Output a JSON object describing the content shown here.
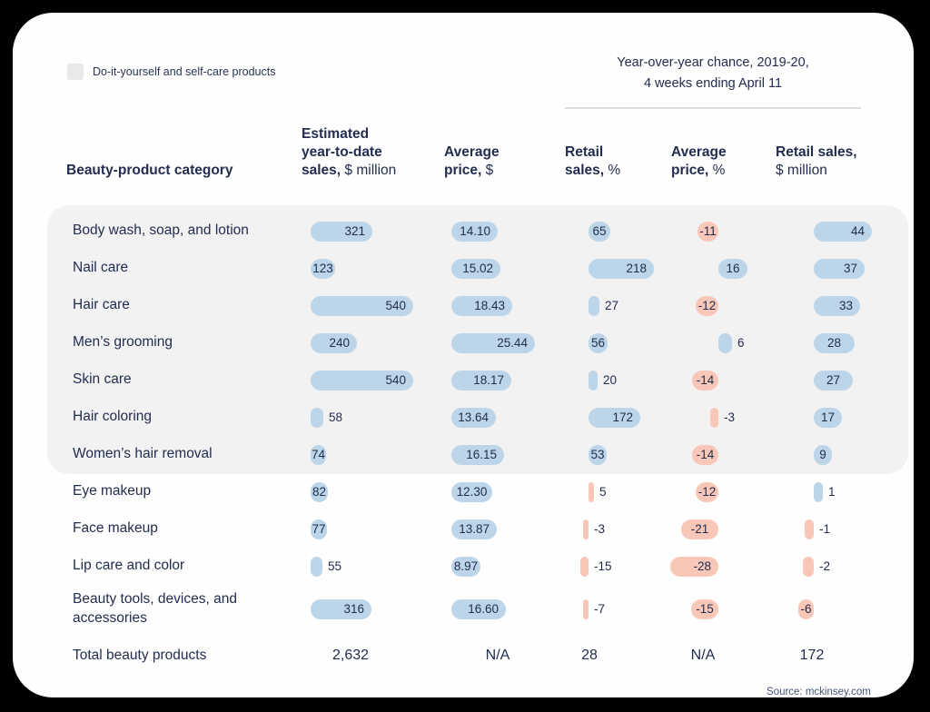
{
  "colors": {
    "background": "#000000",
    "card": "#FEFEFE",
    "highlight_band": "#F2F2F3",
    "text_navy": "#232D4F",
    "bar_positive_blue": "#BDD5E8",
    "bar_negative_pink": "#F8C7B8",
    "legend_square": "#E9E9E9"
  },
  "legend": {
    "label": "Do-it-yourself and self-care products"
  },
  "annotation": {
    "line1": "Year-over-year chance, 2019-20,",
    "line2": "4 weeks ending April 11"
  },
  "headers": {
    "category": "Beauty-product category",
    "col1": {
      "l1": "Estimated",
      "l2": "year-to-date",
      "l3": "sales,",
      "unit": " $ million"
    },
    "col2": {
      "l1": "Average",
      "l2": "price,",
      "unit": " $"
    },
    "col3": {
      "l1": "Retail",
      "l2": "sales,",
      "unit": " %"
    },
    "col4": {
      "l1": "Average",
      "l2": "price,",
      "unit": " %"
    },
    "col5": {
      "l1": "Retail sales,",
      "unit": "$ million"
    }
  },
  "source": "Source: mckinsey.com",
  "chart_data": {
    "type": "table",
    "columns": [
      "Beauty-product category",
      "Estimated year-to-date sales, $ million",
      "Average price, $",
      "Retail sales, %",
      "Average price, %",
      "Retail sales, $ million"
    ],
    "yoy_banner": "Year-over-year chance, 2019-20, 4 weeks ending April 11",
    "yoy_banner_applies_to_columns": [
      "Retail sales, %",
      "Average price, %",
      "Retail sales, $ million"
    ],
    "highlight_note": "First 7 rows sit on a gray band = Do-it-yourself and self-care products",
    "highlight_row_count": 7,
    "bar_positive_color": "#BDD5E8",
    "bar_negative_color": "#F8C7B8",
    "rows": [
      {
        "category": "Body wash, soap, and lotion",
        "cells": [
          {
            "v": 321
          },
          {
            "v": "14.10"
          },
          {
            "v": 65
          },
          {
            "v": -11
          },
          {
            "v": 44
          }
        ]
      },
      {
        "category": "Nail care",
        "cells": [
          {
            "v": 123
          },
          {
            "v": "15.02"
          },
          {
            "v": 218
          },
          {
            "v": 16
          },
          {
            "v": 37
          }
        ]
      },
      {
        "category": "Hair care",
        "cells": [
          {
            "v": 540
          },
          {
            "v": "18.43"
          },
          {
            "v": 27,
            "out": 1
          },
          {
            "v": -12
          },
          {
            "v": 33
          }
        ]
      },
      {
        "category": "Men’s grooming",
        "cells": [
          {
            "v": 240
          },
          {
            "v": "25.44"
          },
          {
            "v": 56
          },
          {
            "v": 6,
            "out": 1
          },
          {
            "v": 28
          }
        ]
      },
      {
        "category": "Skin care",
        "cells": [
          {
            "v": 540
          },
          {
            "v": "18.17"
          },
          {
            "v": 20,
            "out": 1
          },
          {
            "v": -14
          },
          {
            "v": 27
          }
        ]
      },
      {
        "category": "Hair coloring",
        "cells": [
          {
            "v": 58,
            "out": 1
          },
          {
            "v": "13.64"
          },
          {
            "v": 172
          },
          {
            "v": -3,
            "out": 1
          },
          {
            "v": 17
          }
        ]
      },
      {
        "category": "Women’s hair removal",
        "cells": [
          {
            "v": 74
          },
          {
            "v": "16.15"
          },
          {
            "v": 53
          },
          {
            "v": -14
          },
          {
            "v": 9
          }
        ]
      },
      {
        "category": "Eye makeup",
        "cells": [
          {
            "v": 82
          },
          {
            "v": "12.30"
          },
          {
            "v": 5,
            "out": 1,
            "c": "pink"
          },
          {
            "v": -12
          },
          {
            "v": 1,
            "out": 1
          }
        ]
      },
      {
        "category": "Face makeup",
        "cells": [
          {
            "v": 77
          },
          {
            "v": "13.87"
          },
          {
            "v": -3,
            "out": 1
          },
          {
            "v": -21
          },
          {
            "v": -1,
            "out": 1
          }
        ]
      },
      {
        "category": "Lip care and color",
        "cells": [
          {
            "v": 55,
            "out": 1
          },
          {
            "v": "8.97"
          },
          {
            "v": -15,
            "out": 1
          },
          {
            "v": -28
          },
          {
            "v": -2,
            "out": 1
          }
        ]
      },
      {
        "category": "Beauty tools, devices, and accessories",
        "cells": [
          {
            "v": 316
          },
          {
            "v": "16.60"
          },
          {
            "v": -7,
            "out": 1
          },
          {
            "v": -15
          },
          {
            "v": -6
          }
        ]
      }
    ],
    "totals": {
      "category": "Total beauty products",
      "values": [
        "2,632",
        "N/A",
        "28",
        "N/A",
        "172"
      ]
    }
  }
}
